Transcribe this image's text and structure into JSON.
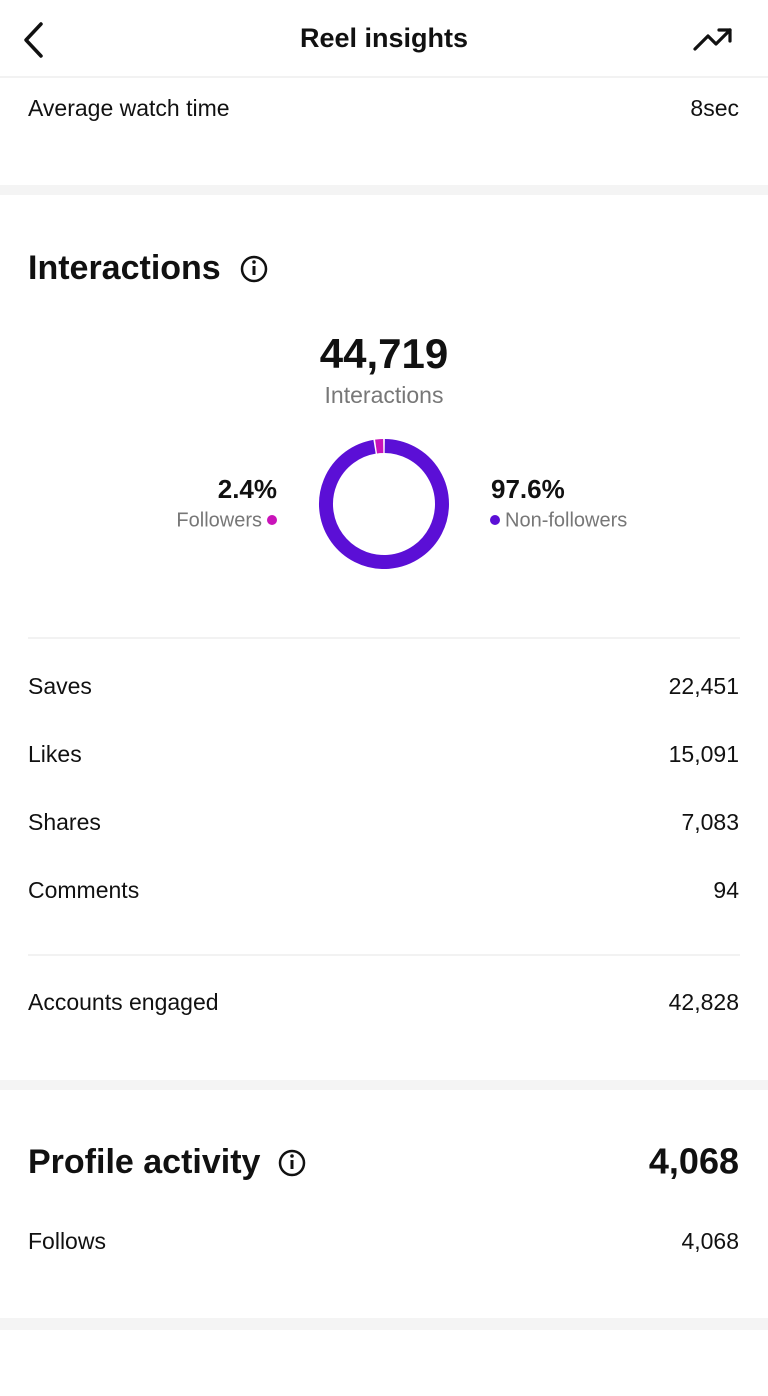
{
  "header": {
    "title": "Reel insights"
  },
  "watch_time": {
    "label": "Average watch time",
    "value": "8sec"
  },
  "interactions": {
    "title": "Interactions",
    "total": "44,719",
    "total_label": "Interactions",
    "segments": [
      {
        "label": "Followers",
        "value": 2.4,
        "value_label": "2.4%",
        "color": "#c913b9"
      },
      {
        "label": "Non-followers",
        "value": 97.6,
        "value_label": "97.6%",
        "color": "#5b0fd6"
      }
    ],
    "rows": [
      [
        "Saves",
        "22,451"
      ],
      [
        "Likes",
        "15,091"
      ],
      [
        "Shares",
        "7,083"
      ],
      [
        "Comments",
        "94"
      ]
    ],
    "engaged": [
      "Accounts engaged",
      "42,828"
    ]
  },
  "profile_activity": {
    "title": "Profile activity",
    "total": "4,068",
    "rows": [
      [
        "Follows",
        "4,068"
      ]
    ]
  }
}
